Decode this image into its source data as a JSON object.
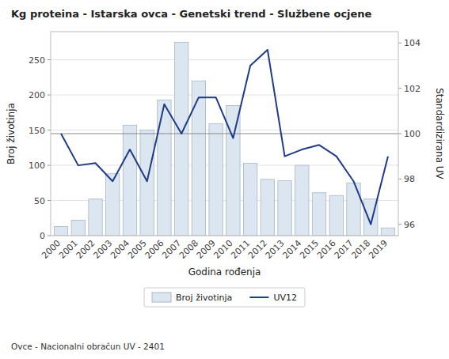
{
  "chart_data": {
    "type": "bar",
    "title": "Kg proteina - Istarska ovca - Genetski trend - Službene ocjene",
    "x_label": "Godina rođenja",
    "y_label": "Broj životinja",
    "y2_label": "Standardizirana UV",
    "footer": "Ovce - Nacionalni obračun UV - 2401",
    "categories": [
      "2000",
      "2001",
      "2002",
      "2003",
      "2004",
      "2005",
      "2006",
      "2007",
      "2008",
      "2009",
      "2010",
      "2011",
      "2012",
      "2013",
      "2014",
      "2015",
      "2016",
      "2017",
      "2018",
      "2019"
    ],
    "series": [
      {
        "name": "Broj životinja",
        "type": "bar",
        "color": "#dce6f0",
        "values": [
          13,
          22,
          52,
          88,
          157,
          150,
          193,
          275,
          220,
          159,
          185,
          103,
          80,
          78,
          100,
          61,
          57,
          75,
          52,
          11
        ]
      },
      {
        "name": "UV12",
        "type": "line",
        "axis": "y2",
        "color": "#1f3c88",
        "values": [
          100.0,
          98.6,
          98.7,
          97.9,
          99.3,
          97.9,
          101.3,
          100.0,
          101.6,
          101.6,
          99.8,
          103.0,
          103.7,
          99.0,
          99.3,
          99.5,
          99.0,
          97.9,
          96.0,
          99.0
        ]
      }
    ],
    "reference_lines": [
      {
        "value": 100.0,
        "axis": "y2",
        "color": "#888888"
      }
    ],
    "ylim": [
      0,
      290
    ],
    "yticks": [
      0,
      50,
      100,
      150,
      200,
      250
    ],
    "y2lim": [
      95.5,
      104.5
    ],
    "y2ticks": [
      96,
      98,
      100,
      102,
      104
    ],
    "grid": true,
    "legend": "bottom"
  }
}
